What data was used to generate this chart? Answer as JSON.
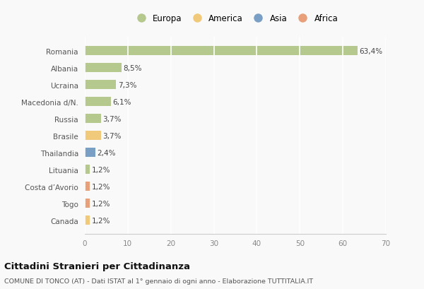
{
  "countries": [
    "Romania",
    "Albania",
    "Ucraina",
    "Macedonia d/N.",
    "Russia",
    "Brasile",
    "Thailandia",
    "Lituania",
    "Costa d’Avorio",
    "Togo",
    "Canada"
  ],
  "values": [
    63.4,
    8.5,
    7.3,
    6.1,
    3.7,
    3.7,
    2.4,
    1.2,
    1.2,
    1.2,
    1.2
  ],
  "labels": [
    "63,4%",
    "8,5%",
    "7,3%",
    "6,1%",
    "3,7%",
    "3,7%",
    "2,4%",
    "1,2%",
    "1,2%",
    "1,2%",
    "1,2%"
  ],
  "colors": [
    "#b5c98e",
    "#b5c98e",
    "#b5c98e",
    "#b5c98e",
    "#b5c98e",
    "#f0c97a",
    "#7a9fc4",
    "#b5c98e",
    "#e8a07a",
    "#e8a07a",
    "#f0c97a"
  ],
  "legend_labels": [
    "Europa",
    "America",
    "Asia",
    "Africa"
  ],
  "legend_colors": [
    "#b5c98e",
    "#f0c97a",
    "#7a9fc4",
    "#e8a07a"
  ],
  "title": "Cittadini Stranieri per Cittadinanza",
  "subtitle": "COMUNE DI TONCO (AT) - Dati ISTAT al 1° gennaio di ogni anno - Elaborazione TUTTITALIA.IT",
  "xlim": [
    0,
    70
  ],
  "xticks": [
    0,
    10,
    20,
    30,
    40,
    50,
    60,
    70
  ],
  "background_color": "#f9f9f9",
  "grid_color": "#ffffff",
  "bar_height": 0.55,
  "label_fontsize": 7.5,
  "ytick_fontsize": 7.5,
  "xtick_fontsize": 7.5
}
